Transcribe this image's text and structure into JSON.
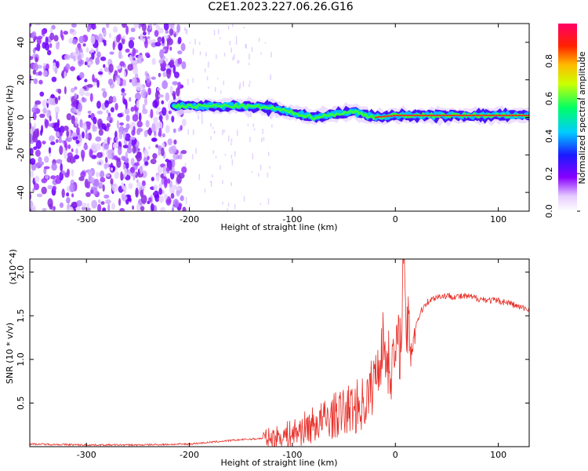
{
  "title": "C2E1.2023.227.06.26.G16",
  "chart_data": [
    {
      "type": "heatmap",
      "xlabel": "Height of straight line (km)",
      "ylabel": "Frequency (Hz)",
      "xlim": [
        -355,
        130
      ],
      "ylim": [
        -50,
        50
      ],
      "x_ticks": [
        -300,
        -200,
        -100,
        0,
        100
      ],
      "y_ticks": [
        -40,
        -20,
        0,
        20,
        40
      ],
      "colorbar": {
        "label": "Normalized spectral amplitude",
        "range": [
          0.0,
          1.0
        ],
        "ticks": [
          0.0,
          0.2,
          0.4,
          0.6,
          0.8
        ]
      },
      "features": [
        {
          "desc": "broadband noise",
          "x_range": [
            -355,
            -205
          ],
          "y_range": [
            -50,
            50
          ]
        },
        {
          "desc": "narrow signal band",
          "points": [
            [
              -215,
              6
            ],
            [
              -150,
              6
            ],
            [
              -120,
              5
            ],
            [
              -80,
              0
            ],
            [
              -40,
              3
            ],
            [
              -20,
              0
            ],
            [
              0,
              1
            ],
            [
              40,
              1
            ],
            [
              100,
              1
            ],
            [
              130,
              1
            ]
          ]
        }
      ]
    },
    {
      "type": "line",
      "xlabel": "Height of straight line (km)",
      "ylabel": "SNR (10 * v/v)",
      "y_multiplier": "(x10^4)",
      "xlim": [
        -355,
        130
      ],
      "ylim": [
        0,
        2.15
      ],
      "x_ticks": [
        -300,
        -200,
        -100,
        0,
        100
      ],
      "y_ticks": [
        0.5,
        1.0,
        1.5,
        2.0
      ],
      "color": "#e8302a",
      "series": [
        {
          "x": [
            -355,
            -300,
            -250,
            -200,
            -180,
            -150,
            -120,
            -110,
            -100,
            -90,
            -80,
            -70,
            -60,
            -50,
            -40,
            -30,
            -25,
            -20,
            -15,
            -12,
            -10,
            -5,
            0,
            5,
            8,
            10,
            15,
            20,
            25,
            30,
            40,
            50,
            60,
            70,
            80,
            90,
            100,
            110,
            120,
            130
          ],
          "y": [
            0.03,
            0.02,
            0.02,
            0.03,
            0.05,
            0.08,
            0.1,
            0.12,
            0.15,
            0.2,
            0.25,
            0.3,
            0.35,
            0.4,
            0.45,
            0.5,
            0.6,
            0.8,
            1.0,
            1.2,
            1.1,
            0.9,
            1.05,
            1.2,
            2.2,
            1.4,
            1.2,
            1.4,
            1.55,
            1.65,
            1.72,
            1.73,
            1.72,
            1.72,
            1.7,
            1.68,
            1.67,
            1.65,
            1.6,
            1.57
          ]
        }
      ]
    }
  ]
}
